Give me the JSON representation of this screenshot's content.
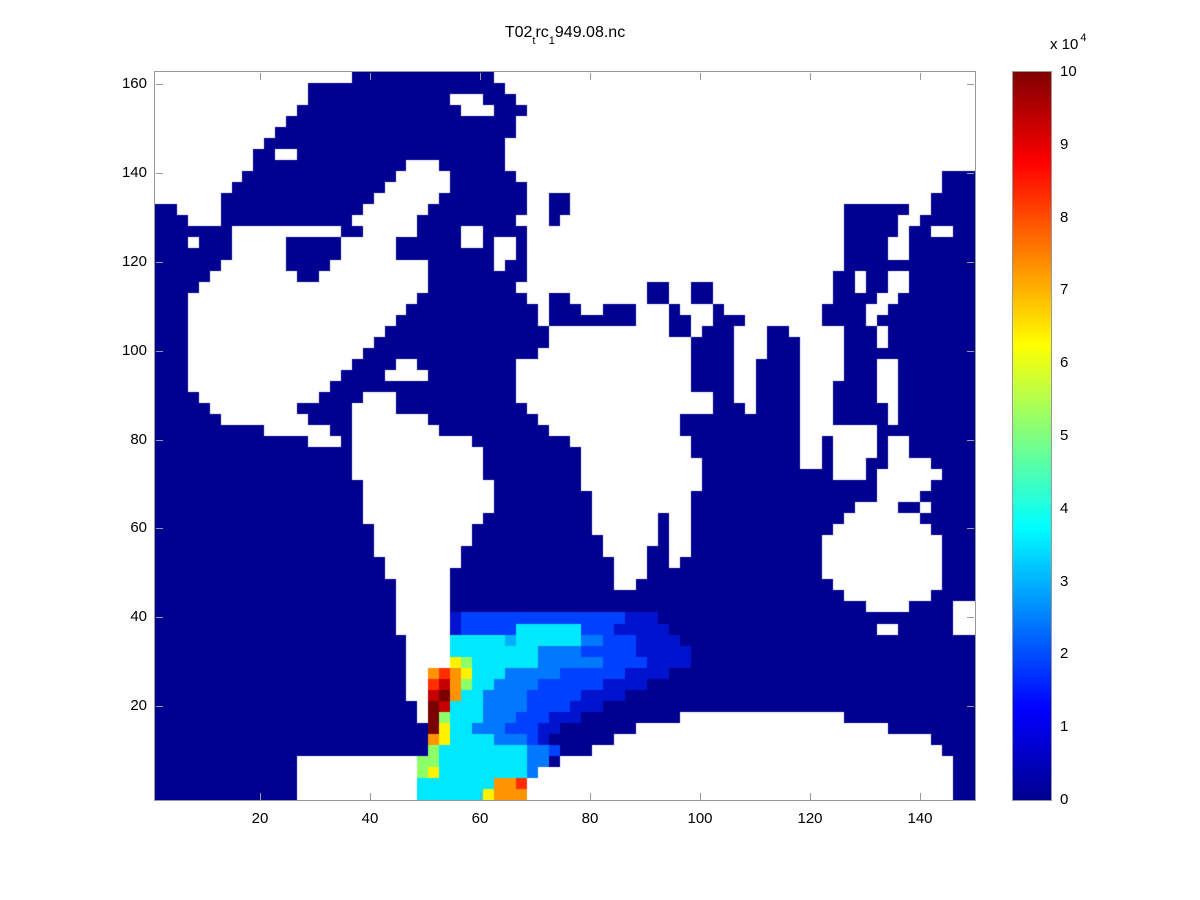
{
  "window": {
    "background": "#ffffff"
  },
  "title": {
    "full": "T02_trc_1949.08.nc",
    "parts": [
      {
        "text": "T02",
        "sub": false
      },
      {
        "text": "t",
        "sub": true
      },
      {
        "text": "rc",
        "sub": false
      },
      {
        "text": "1",
        "sub": true
      },
      {
        "text": "949.08.nc",
        "sub": false
      }
    ]
  },
  "chart_data": {
    "type": "heatmap",
    "title": "T02_trc_1949.08.nc",
    "colormap": "jet",
    "grid_lines": false,
    "legend_position": "right-colorbar",
    "x_axis": {
      "ticks": [
        20,
        40,
        60,
        80,
        100,
        120,
        140
      ],
      "min": 1,
      "max": 150
    },
    "y_axis": {
      "ticks": [
        20,
        40,
        60,
        80,
        100,
        120,
        140,
        160
      ],
      "min": -1.1,
      "max": 162.7
    },
    "colorbar": {
      "tick_labels": [
        "0",
        "1",
        "2",
        "3",
        "4",
        "5",
        "6",
        "7",
        "8",
        "9",
        "10"
      ],
      "min": 0,
      "max": 10,
      "exponent_prefix": "x 10",
      "exponent_power": "4",
      "stops": [
        [
          0.0,
          "#00008F"
        ],
        [
          0.125,
          "#0000FF"
        ],
        [
          0.375,
          "#00FFFF"
        ],
        [
          0.5,
          "#80FF80"
        ],
        [
          0.625,
          "#FFFF00"
        ],
        [
          0.875,
          "#FF0000"
        ],
        [
          1.0,
          "#800000"
        ]
      ]
    },
    "value_meaning": "tracer concentration (ocean model), land masked white",
    "grid": {
      "cols": 75,
      "rows": 66,
      "palette": {
        ".": "#000091",
        "#": "#FFFFFF",
        "d": "#0013CE",
        "b": "#0041FF",
        "B": "#0078FF",
        "c": "#00AFFF",
        "C": "#00E8FF",
        "G": "#8CFF69",
        "Y": "#FFF200",
        "O": "#FF9400",
        "R": "#FF2D00",
        "K": "#C40000",
        "M": "#7A0000"
      },
      "cells": [
        "##################.............############################################",
        "##############..................###########################################",
        "##############.............###...##########################################",
        "#############...............###...#########################################",
        "############.....................##########################################",
        "###########......................##########################################",
        "##########......................###########################################",
        "#########..##...................###########################################",
        "#########..............###......###########################################",
        "########..............#####......#######################################...",
        "#######..............######.......######################################...",
        "######..............######........##..#################################....",
        "..####.............######.........##..#########################......##....",
        "...###............######.........###.##########################.....##.....",
        ".......##########..#####....##....#############################.....#..##..",
        "...#...#####.....#####......##.##.#############################....##......",
        ".......#####.....#####.........##.#############################....##......",
        "......######....#########......#..#############################............",
        ".....########..##########.........############################..#..##......",
        "....#####################........############..##..###########..#..##......",
        "...#####################..........##..#######..##..###########....##.......",
        "...####################............#...##...###.###.#########....##........",
        "...###################.............#........###..##...#######....#.........",
        "...##################...............###########..#...###..#####...#........",
        "...#################................#############....###...####...#........",
        "...################................##############....###...####............",
        "...###############....##.........################....##....####...##.......",
        "...##############....####........################....##....####...##.......",
        "...#############.................################....##....###....##.......",
        "....###########....###...........##################..##....###....##.......",
        ".....########.....####............#################...#....###.....#.......",
        "......########....#######..........#############...........###.....#.......",
        "..........######..########..........############...........#######.........",
        "..............###.###########.........###########..........##.####.##......",
        "..................############.........##########..........##.####.##......",
        "..................############.........###########.........##.###..####...",
        "..................############.........###########............###.######...",
        "...................############........###########................#####....",
        "...................############.........#########.................####.....",
        "...................############.........#########...............####..#....",
        "...................###########..........######.##..............#######.....",
        "....................#########...........######.##.............#########....",
        "....................#########............#####.##............###########...",
        "....................########.............####..##............###########...",
        ".....................#######..............###..#.............###########...",
        ".....................######...............###................###########...",
        "......................#####...............##..................##########...",
        "......................#####....................................########....",
        "......................#####......................................####....##",
        "......................#####dbbbbbbbbbbbbbbbddd...........................##",
        "......................#####dbbbbbCCCCCCbbbddddd...................##.....##",
        ".......................####CCCCCcCCCCCCBBbbbdddd...........................",
        ".......................####CCCCCCCCBBBBbbbbbddddd..........................",
        ".......................####YGCCCCCCBBBBBBbbbbdddd..........................",
        ".......................##OROYCCCBBBBBbbbbbbdddd............................",
        ".......................##RKOGCCBBBBbbbbbbdddd..............................",
        ".......................##KMOCCBBBBbbbbbdddd................................",
        "........................#MKCCCBBBBbbbbddd..................................",
        "........................#MGCCCBBBbbbddd.........###############............",
        ".........................MYCCBBBbbbdd.......#######################........",
        ".........................OYCCCCBBBbd......#############################....",
        ".........................GCCCCCCCCBBb...################################...",
        ".............###########GGCCCCCCCCBB.####################################..",
        ".............###########GYCCCCCCCCB######################################..",
        ".............###########CCCCCCCOOR#######################################..",
        ".............###########CCCCCCYOOO#######################################.."
      ]
    }
  }
}
